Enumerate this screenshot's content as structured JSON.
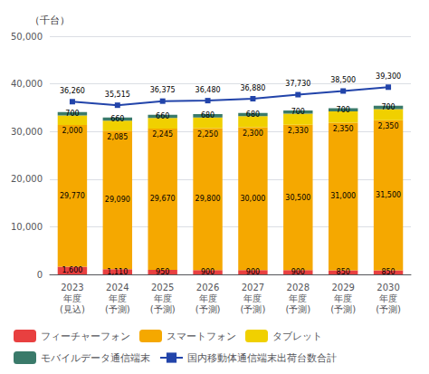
{
  "chart_data": {
    "type": "bar",
    "stacked": true,
    "data_labels": true,
    "grid": true,
    "legend": "bottom",
    "ylabel": "（千台）",
    "categories": [
      "2023\n年度\n(見込)",
      "2024\n年度\n(予測)",
      "2025\n年度\n(予測)",
      "2026\n年度\n(予測)",
      "2027\n年度\n(予測)",
      "2028\n年度\n(予測)",
      "2029\n年度\n(予測)",
      "2030\n年度\n(予測)"
    ],
    "ylim": [
      0,
      50000
    ],
    "yticks": [
      0,
      {
        "value": 10000,
        "label": "10,000"
      },
      {
        "value": 20000,
        "label": "20,000"
      },
      {
        "value": 30000,
        "label": "30,000"
      },
      {
        "value": 40000,
        "label": "40,000"
      },
      {
        "value": 50000,
        "label": "50,000"
      }
    ],
    "series": [
      {
        "name": "フィーチャーフォン",
        "type": "bar",
        "color": "#e84040",
        "values": [
          1600,
          1110,
          950,
          900,
          900,
          900,
          850,
          850
        ],
        "value_labels": [
          "1,600",
          "1,110",
          "950",
          "900",
          "900",
          "900",
          "850",
          "850"
        ]
      },
      {
        "name": "スマートフォン",
        "type": "bar",
        "color": "#f5a800",
        "values": [
          29770,
          29090,
          29670,
          29800,
          30000,
          30500,
          31000,
          31500
        ],
        "value_labels": [
          "29,770",
          "29,090",
          "29,670",
          "29,800",
          "30,000",
          "30,500",
          "31,000",
          "31,500"
        ]
      },
      {
        "name": "タブレット",
        "type": "bar",
        "color": "#f0d000",
        "values": [
          2000,
          2085,
          2245,
          2250,
          2300,
          2330,
          2350,
          2350
        ],
        "value_labels": [
          "2,000",
          "2,085",
          "2,245",
          "2,250",
          "2,300",
          "2,330",
          "2,350",
          "2,350"
        ]
      },
      {
        "name": "モバイルデータ通信端末",
        "type": "bar",
        "color": "#3a7a6a",
        "values": [
          700,
          660,
          660,
          680,
          680,
          700,
          700,
          700
        ],
        "value_labels": [
          "700",
          "660",
          "660",
          "680",
          "680",
          "700",
          "700",
          "700"
        ]
      },
      {
        "name": "国内移動体通信端末出荷台数合計",
        "type": "line",
        "color": "#2244aa",
        "marker": "square",
        "values": [
          36260,
          35515,
          36375,
          36480,
          36880,
          37730,
          38500,
          39300
        ],
        "value_labels": [
          "36,260",
          "35,515",
          "36,375",
          "36,480",
          "36,880",
          "37,730",
          "38,500",
          "39,300"
        ]
      }
    ]
  }
}
